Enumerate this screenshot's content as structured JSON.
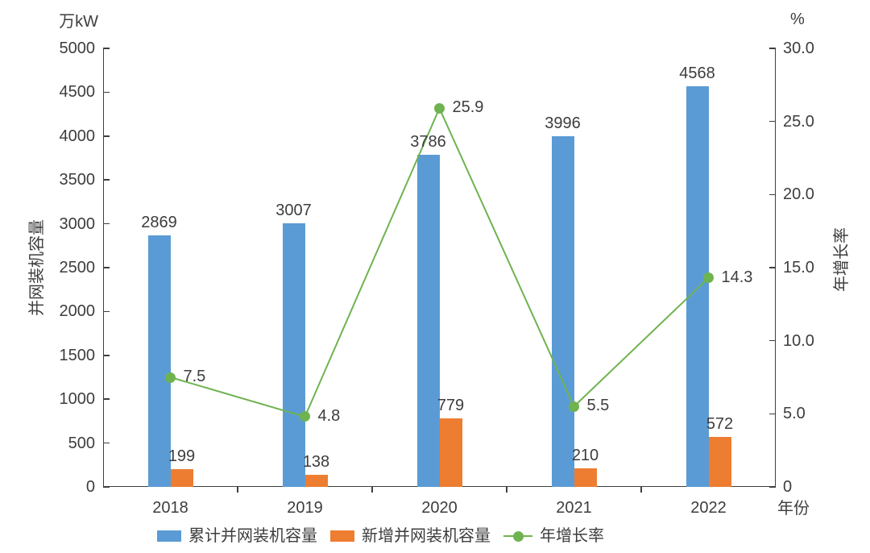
{
  "chart_data": {
    "type": "bar+line",
    "categories": [
      "2018",
      "2019",
      "2020",
      "2021",
      "2022"
    ],
    "series": [
      {
        "name": "累计并网装机容量",
        "type": "bar",
        "axis": "left",
        "color": "#5B9BD5",
        "values": [
          2869,
          3007,
          3786,
          3996,
          4568
        ]
      },
      {
        "name": "新增并网装机容量",
        "type": "bar",
        "axis": "left",
        "color": "#ED7D31",
        "values": [
          199,
          138,
          779,
          210,
          572
        ]
      },
      {
        "name": "年增长率",
        "type": "line",
        "axis": "right",
        "color": "#6FB350",
        "values": [
          7.5,
          4.8,
          25.9,
          5.5,
          14.3
        ]
      }
    ],
    "left_axis": {
      "unit": "万kW",
      "label": "并网装机容量",
      "min": 0,
      "max": 5000,
      "tick_step": 500,
      "tick_labels": [
        "0",
        "500",
        "1000",
        "1500",
        "2000",
        "2500",
        "3000",
        "3500",
        "4000",
        "4500",
        "5000"
      ]
    },
    "right_axis": {
      "unit": "%",
      "label": "年增长率",
      "min": 0,
      "max": 30,
      "tick_step": 5,
      "tick_labels": [
        "0",
        "5.0",
        "10.0",
        "15.0",
        "20.0",
        "25.0",
        "30.0"
      ]
    },
    "x_axis": {
      "label": "年份"
    },
    "grid": false,
    "legend_position": "bottom",
    "colors": {
      "text": "#3d3d3d",
      "axis": "#3f3f3f"
    }
  }
}
